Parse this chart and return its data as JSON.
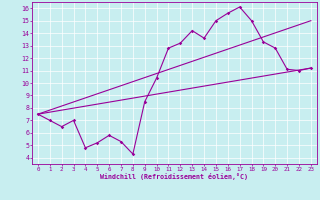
{
  "bg_color": "#c8eef0",
  "line_color": "#990099",
  "xlabel": "Windchill (Refroidissement éolien,°C)",
  "xlim": [
    -0.5,
    23.5
  ],
  "ylim": [
    3.5,
    16.5
  ],
  "xticks": [
    0,
    1,
    2,
    3,
    4,
    5,
    6,
    7,
    8,
    9,
    10,
    11,
    12,
    13,
    14,
    15,
    16,
    17,
    18,
    19,
    20,
    21,
    22,
    23
  ],
  "yticks": [
    4,
    5,
    6,
    7,
    8,
    9,
    10,
    11,
    12,
    13,
    14,
    15,
    16
  ],
  "zigzag_x": [
    0,
    1,
    2,
    3,
    4,
    5,
    6,
    7,
    8,
    9,
    10,
    11,
    12,
    13,
    14,
    15,
    16,
    17,
    18,
    19,
    20,
    21,
    22,
    23
  ],
  "zigzag_y": [
    7.5,
    7.0,
    6.5,
    7.0,
    4.8,
    5.2,
    5.8,
    5.3,
    4.3,
    8.5,
    10.4,
    12.8,
    13.2,
    14.2,
    13.6,
    15.0,
    15.6,
    16.1,
    15.0,
    13.3,
    12.8,
    11.1,
    11.0,
    11.2
  ],
  "line1_x": [
    0,
    23
  ],
  "line1_y": [
    7.5,
    11.2
  ],
  "line2_x": [
    0,
    23
  ],
  "line2_y": [
    7.5,
    15.0
  ]
}
